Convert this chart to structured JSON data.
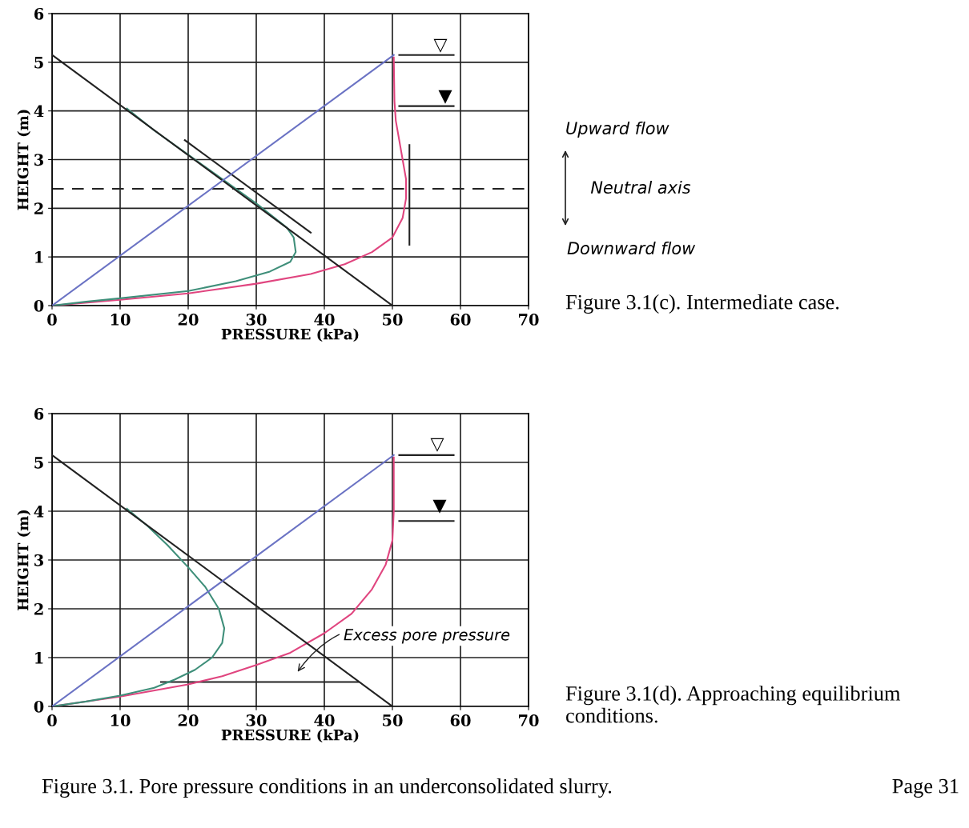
{
  "chart_data": [
    {
      "type": "line",
      "xlabel": "PRESSURE (kPa)",
      "ylabel": "HEIGHT (m)",
      "xlim": [
        0,
        70
      ],
      "ylim": [
        0,
        6
      ],
      "xticks": [
        0,
        10,
        20,
        30,
        40,
        50,
        60,
        70
      ],
      "yticks": [
        0,
        1,
        2,
        3,
        4,
        5,
        6
      ],
      "grid": true,
      "marker": "none",
      "line_style": "solid",
      "series": [
        {
          "color": "#6b73c4",
          "x": [
            0,
            50.2
          ],
          "values": [
            0,
            5.15
          ]
        },
        {
          "color": "#222222",
          "x": [
            0,
            50
          ],
          "values": [
            5.15,
            0
          ]
        },
        {
          "color": "#3f8f7a",
          "x": [
            0,
            5,
            10,
            20,
            27,
            32,
            35,
            35.8,
            35.5,
            34.5,
            30,
            25,
            20,
            15,
            11
          ],
          "values": [
            0,
            0.08,
            0.15,
            0.3,
            0.5,
            0.7,
            0.9,
            1.1,
            1.4,
            1.6,
            2.1,
            2.6,
            3.1,
            3.6,
            4.05
          ]
        },
        {
          "color": "#e0457f",
          "x": [
            0,
            10,
            20,
            30,
            38,
            43,
            47,
            50,
            51.5,
            52,
            52,
            51.5,
            51,
            50.5,
            50.3,
            50.2
          ],
          "values": [
            0,
            0.12,
            0.25,
            0.45,
            0.65,
            0.85,
            1.1,
            1.4,
            1.8,
            2.2,
            2.6,
            3.0,
            3.4,
            3.8,
            4.2,
            5.1
          ]
        },
        {
          "color": "#222222",
          "x": [
            19.5,
            38
          ],
          "values": [
            3.4,
            1.5
          ]
        },
        {
          "color": "#222222",
          "x": [
            52.5,
            52.5
          ],
          "values": [
            1.25,
            3.3
          ]
        },
        {
          "color": "#222222",
          "x": [
            51,
            59
          ],
          "values": [
            5.15,
            5.15
          ]
        },
        {
          "color": "#222222",
          "x": [
            51,
            59
          ],
          "values": [
            4.1,
            4.1
          ]
        }
      ],
      "ref_lines": [
        {
          "axis": "y",
          "value": 2.4,
          "label": "Neutral axis",
          "line_style": "dashed",
          "color": "#222222"
        }
      ],
      "annotations": [
        "Upward flow",
        "Downward flow",
        "Figure 3.1(c). Intermediate case.",
        "▽",
        "▼"
      ]
    },
    {
      "type": "line",
      "xlabel": "PRESSURE (kPa)",
      "ylabel": "HEIGHT (m)",
      "xlim": [
        0,
        70
      ],
      "ylim": [
        0,
        6
      ],
      "xticks": [
        0,
        10,
        20,
        30,
        40,
        50,
        60,
        70
      ],
      "yticks": [
        0,
        1,
        2,
        3,
        4,
        5,
        6
      ],
      "grid": true,
      "marker": "none",
      "line_style": "solid",
      "series": [
        {
          "color": "#6b73c4",
          "x": [
            0,
            50.2
          ],
          "values": [
            0,
            5.15
          ]
        },
        {
          "color": "#222222",
          "x": [
            0,
            50
          ],
          "values": [
            5.15,
            0
          ]
        },
        {
          "color": "#3f8f7a",
          "x": [
            0,
            5,
            10,
            15,
            18,
            21,
            23.5,
            25,
            25.3,
            24.5,
            22.5,
            20,
            17,
            14,
            11
          ],
          "values": [
            0,
            0.1,
            0.22,
            0.38,
            0.55,
            0.75,
            1.0,
            1.3,
            1.6,
            2.0,
            2.45,
            2.85,
            3.3,
            3.7,
            4.05
          ]
        },
        {
          "color": "#e0457f",
          "x": [
            0,
            10,
            20,
            25,
            30,
            35,
            40,
            44,
            47,
            49,
            50,
            50.2,
            50.2
          ],
          "values": [
            0,
            0.2,
            0.45,
            0.62,
            0.85,
            1.1,
            1.5,
            1.9,
            2.4,
            2.9,
            3.4,
            4.0,
            5.1
          ]
        },
        {
          "color": "#222222",
          "x": [
            16,
            45
          ],
          "values": [
            0.5,
            0.5
          ]
        },
        {
          "color": "#222222",
          "x": [
            51,
            59
          ],
          "values": [
            5.15,
            5.15
          ]
        },
        {
          "color": "#222222",
          "x": [
            51,
            59
          ],
          "values": [
            3.8,
            3.8
          ]
        }
      ],
      "annotations": [
        "Excess pore pressure",
        "Figure 3.1(d). Approaching equilibrium conditions.",
        "Figure 3.1. Pore pressure conditions in an underconsolidated slurry.",
        "Page 31",
        "▽",
        "▼"
      ]
    }
  ]
}
